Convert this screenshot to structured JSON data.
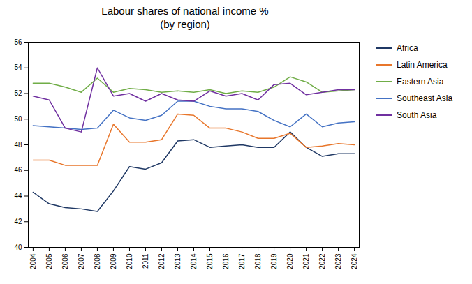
{
  "chart_data": {
    "type": "line",
    "title": "Labour shares of national income %\n(by region)",
    "x": [
      2004,
      2005,
      2006,
      2007,
      2008,
      2009,
      2010,
      2011,
      2012,
      2013,
      2014,
      2015,
      2016,
      2017,
      2018,
      2019,
      2020,
      2021,
      2022,
      2023,
      2024
    ],
    "series": [
      {
        "name": "Africa",
        "color": "#1f3864",
        "values": [
          44.3,
          43.4,
          43.1,
          43.0,
          42.8,
          44.4,
          46.3,
          46.1,
          46.6,
          48.3,
          48.4,
          47.8,
          47.9,
          48.0,
          47.8,
          47.8,
          49.0,
          47.8,
          47.1,
          47.3,
          47.3
        ]
      },
      {
        "name": "Latin America",
        "color": "#e8762b",
        "values": [
          46.8,
          46.8,
          46.4,
          46.4,
          46.4,
          49.6,
          48.2,
          48.2,
          48.4,
          50.4,
          50.3,
          49.3,
          49.3,
          49.0,
          48.5,
          48.5,
          48.9,
          47.8,
          47.9,
          48.1,
          48.0
        ]
      },
      {
        "name": "Eastern Asia",
        "color": "#70ad47",
        "values": [
          52.8,
          52.8,
          52.5,
          52.1,
          53.2,
          52.1,
          52.4,
          52.3,
          52.1,
          52.2,
          52.1,
          52.3,
          52.0,
          52.2,
          52.1,
          52.5,
          53.3,
          52.9,
          52.1,
          52.2,
          52.3
        ]
      },
      {
        "name": "Southeast Asia",
        "color": "#4472c4",
        "values": [
          49.5,
          49.4,
          49.3,
          49.2,
          49.3,
          50.7,
          50.1,
          49.9,
          50.3,
          51.4,
          51.4,
          51.0,
          50.8,
          50.8,
          50.6,
          49.9,
          49.4,
          50.4,
          49.4,
          49.7,
          49.8
        ]
      },
      {
        "name": "South Asia",
        "color": "#7030a0",
        "values": [
          51.8,
          51.5,
          49.3,
          49.0,
          54.0,
          51.8,
          52.0,
          51.4,
          52.0,
          51.5,
          51.4,
          52.2,
          51.8,
          52.0,
          51.5,
          52.7,
          52.8,
          51.9,
          52.1,
          52.3,
          52.3
        ]
      }
    ],
    "xlim": [
      2003.7,
      2024.3
    ],
    "xticks": [
      2004,
      2005,
      2006,
      2007,
      2008,
      2009,
      2010,
      2011,
      2012,
      2013,
      2014,
      2015,
      2016,
      2017,
      2018,
      2019,
      2020,
      2021,
      2022,
      2023,
      2024
    ],
    "ylim": [
      40,
      56
    ],
    "yticks": [
      40,
      42,
      44,
      46,
      48,
      50,
      52,
      54,
      56
    ],
    "grid": false,
    "legend": "right"
  }
}
